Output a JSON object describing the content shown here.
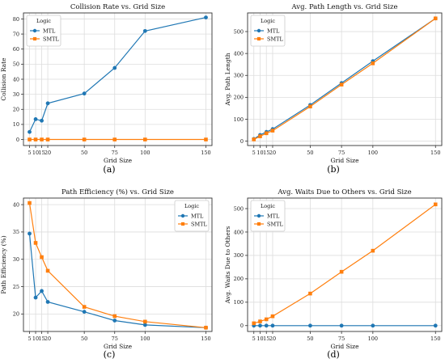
{
  "colors": {
    "MTL": "#1f77b4",
    "SMTL": "#ff7f0e",
    "grid": "#dddddd",
    "axes": "#333333"
  },
  "legend_title": "Logic",
  "chart_data": [
    {
      "id": "a",
      "type": "line",
      "title": "Collision Rate vs. Grid Size",
      "xlabel": "Grid Size",
      "ylabel": "Collision Rate",
      "caption": "(a)",
      "x": [
        5,
        10,
        15,
        20,
        50,
        75,
        100,
        150
      ],
      "xlim": [
        0,
        155
      ],
      "ylim": [
        -4,
        84
      ],
      "yticks": [
        0,
        10,
        20,
        30,
        40,
        50,
        60,
        70,
        80
      ],
      "legend_pos": "top-left",
      "series": [
        {
          "name": "MTL",
          "marker": "circle",
          "values": [
            5,
            13.5,
            12.5,
            24,
            30.5,
            47.5,
            72,
            81
          ]
        },
        {
          "name": "SMTL",
          "marker": "square",
          "values": [
            0,
            0,
            0,
            0,
            0,
            0,
            0,
            0
          ]
        }
      ],
      "grid": true
    },
    {
      "id": "b",
      "type": "line",
      "title": "Avg. Path Length vs. Grid Size",
      "xlabel": "Grid Size",
      "ylabel": "Avg. Path Length",
      "caption": "(b)",
      "x": [
        5,
        10,
        15,
        20,
        50,
        75,
        100,
        150
      ],
      "xlim": [
        0,
        155
      ],
      "ylim": [
        -20,
        585
      ],
      "yticks": [
        0,
        100,
        200,
        300,
        400,
        500
      ],
      "legend_pos": "top-left",
      "series": [
        {
          "name": "MTL",
          "marker": "circle",
          "values": [
            10,
            28,
            42,
            55,
            165,
            265,
            365,
            560
          ]
        },
        {
          "name": "SMTL",
          "marker": "square",
          "values": [
            8,
            22,
            36,
            48,
            158,
            258,
            355,
            560
          ]
        }
      ],
      "grid": true
    },
    {
      "id": "c",
      "type": "line",
      "title": "Path Efficiency (%) vs. Grid Size",
      "xlabel": "Grid Size",
      "ylabel": "Path Efficiency (%)",
      "caption": "(c)",
      "x": [
        5,
        10,
        15,
        20,
        50,
        75,
        100,
        150
      ],
      "xlim": [
        0,
        155
      ],
      "ylim": [
        16.8,
        41.2
      ],
      "yticks": [
        20,
        25,
        30,
        35,
        40
      ],
      "legend_pos": "top-right",
      "series": [
        {
          "name": "MTL",
          "marker": "circle",
          "values": [
            34.7,
            23,
            24.2,
            22.2,
            20.4,
            18.8,
            18,
            17.5
          ]
        },
        {
          "name": "SMTL",
          "marker": "square",
          "values": [
            40.3,
            33,
            30.4,
            27.9,
            21.3,
            19.6,
            18.6,
            17.5
          ]
        }
      ],
      "grid": true
    },
    {
      "id": "d",
      "type": "line",
      "title": "Avg. Waits Due to Others vs. Grid Size",
      "xlabel": "Grid Size",
      "ylabel": "Avg. Waits Due to Others",
      "caption": "(d)",
      "x": [
        5,
        10,
        15,
        20,
        50,
        75,
        100,
        150
      ],
      "xlim": [
        0,
        155
      ],
      "ylim": [
        -25,
        545
      ],
      "yticks": [
        0,
        100,
        200,
        300,
        400,
        500
      ],
      "legend_pos": "top-left",
      "series": [
        {
          "name": "MTL",
          "marker": "circle",
          "values": [
            0,
            0,
            0,
            0,
            0,
            0,
            0,
            0
          ]
        },
        {
          "name": "SMTL",
          "marker": "square",
          "values": [
            10,
            18,
            27,
            40,
            137,
            230,
            320,
            518
          ]
        }
      ],
      "grid": true
    }
  ]
}
